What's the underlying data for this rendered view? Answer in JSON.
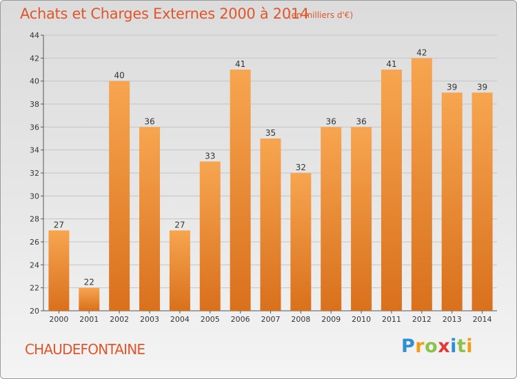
{
  "header": {
    "title": "Achats et Charges Externes 2000 à 2014",
    "unit": "(en milliers d'€)"
  },
  "footer": {
    "commune": "CHAUDEFONTAINE",
    "logo_letters": [
      "P",
      "r",
      "o",
      "x",
      "i",
      "t",
      "i"
    ],
    "logo_colors": [
      "#2f8fd0",
      "#f39c12",
      "#8bc34a",
      "#e53935",
      "#2f8fd0",
      "#8bc34a",
      "#f39c12"
    ]
  },
  "chart_data": {
    "type": "bar",
    "title": "Achats et Charges Externes 2000 à 2014",
    "subtitle": "(en milliers d'€)",
    "categories": [
      "2000",
      "2001",
      "2002",
      "2003",
      "2004",
      "2005",
      "2006",
      "2007",
      "2008",
      "2009",
      "2010",
      "2011",
      "2012",
      "2013",
      "2014"
    ],
    "values": [
      27,
      22,
      40,
      36,
      27,
      33,
      41,
      35,
      32,
      36,
      36,
      41,
      42,
      39,
      39
    ],
    "ylim": [
      20,
      44
    ],
    "yticks": [
      20,
      22,
      24,
      26,
      28,
      30,
      32,
      34,
      36,
      38,
      40,
      42,
      44
    ],
    "grid": true,
    "bar_color_top": "#f7a550",
    "bar_color_bottom": "#d9701c"
  }
}
